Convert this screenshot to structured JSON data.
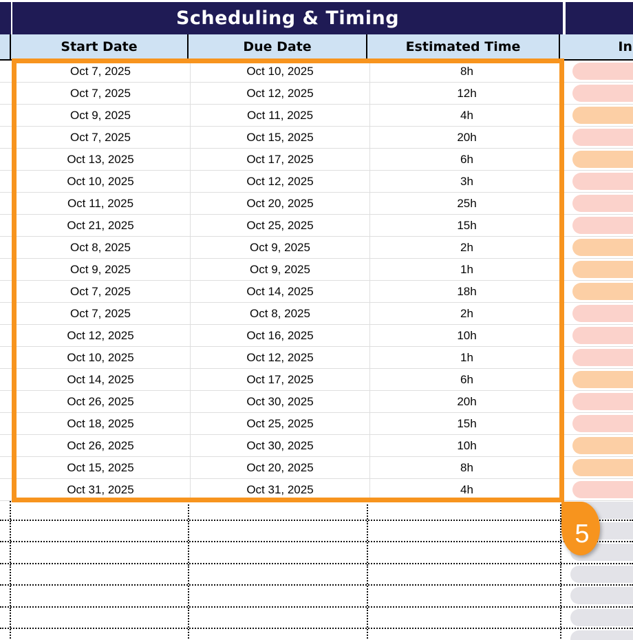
{
  "header": {
    "section_title": "Scheduling & Timing",
    "right_section_partial": ""
  },
  "columns": {
    "start_date": "Start Date",
    "due_date": "Due Date",
    "estimated_time": "Estimated Time",
    "right_partial": "In"
  },
  "rows": [
    {
      "start": "Oct 7, 2025",
      "due": "Oct 10, 2025",
      "est": "8h",
      "pill": "pink"
    },
    {
      "start": "Oct 7, 2025",
      "due": "Oct 12, 2025",
      "est": "12h",
      "pill": "pink"
    },
    {
      "start": "Oct 9, 2025",
      "due": "Oct 11, 2025",
      "est": "4h",
      "pill": "orange"
    },
    {
      "start": "Oct 7, 2025",
      "due": "Oct 15, 2025",
      "est": "20h",
      "pill": "pink"
    },
    {
      "start": "Oct 13, 2025",
      "due": "Oct 17, 2025",
      "est": "6h",
      "pill": "orange"
    },
    {
      "start": "Oct 10, 2025",
      "due": "Oct 12, 2025",
      "est": "3h",
      "pill": "pink"
    },
    {
      "start": "Oct 11, 2025",
      "due": "Oct 20, 2025",
      "est": "25h",
      "pill": "pink"
    },
    {
      "start": "Oct 21, 2025",
      "due": "Oct 25, 2025",
      "est": "15h",
      "pill": "pink"
    },
    {
      "start": "Oct 8, 2025",
      "due": "Oct 9, 2025",
      "est": "2h",
      "pill": "orange"
    },
    {
      "start": "Oct 9, 2025",
      "due": "Oct 9, 2025",
      "est": "1h",
      "pill": "orange"
    },
    {
      "start": "Oct 7, 2025",
      "due": "Oct 14, 2025",
      "est": "18h",
      "pill": "orange"
    },
    {
      "start": "Oct 7, 2025",
      "due": "Oct 8, 2025",
      "est": "2h",
      "pill": "pink"
    },
    {
      "start": "Oct 12, 2025",
      "due": "Oct 16, 2025",
      "est": "10h",
      "pill": "pink"
    },
    {
      "start": "Oct 10, 2025",
      "due": "Oct 12, 2025",
      "est": "1h",
      "pill": "pink"
    },
    {
      "start": "Oct 14, 2025",
      "due": "Oct 17, 2025",
      "est": "6h",
      "pill": "orange"
    },
    {
      "start": "Oct 26, 2025",
      "due": "Oct 30, 2025",
      "est": "20h",
      "pill": "pink"
    },
    {
      "start": "Oct 18, 2025",
      "due": "Oct 25, 2025",
      "est": "15h",
      "pill": "pink"
    },
    {
      "start": "Oct 26, 2025",
      "due": "Oct 30, 2025",
      "est": "10h",
      "pill": "orange"
    },
    {
      "start": "Oct 15, 2025",
      "due": "Oct 20, 2025",
      "est": "8h",
      "pill": "orange"
    },
    {
      "start": "Oct 31, 2025",
      "due": "Oct 31, 2025",
      "est": "4h",
      "pill": "pink"
    }
  ],
  "empty_rows_count": 7,
  "selection": {
    "badge": "5"
  },
  "colors": {
    "navy_band": "#1f1b55",
    "header_blue": "#cfe2f3",
    "selection_orange": "#f7941e",
    "pill_pink": "#fbd2cb",
    "pill_orange": "#fccfa5",
    "pill_gray": "#e3e3e8",
    "gridline": "#dedede"
  }
}
